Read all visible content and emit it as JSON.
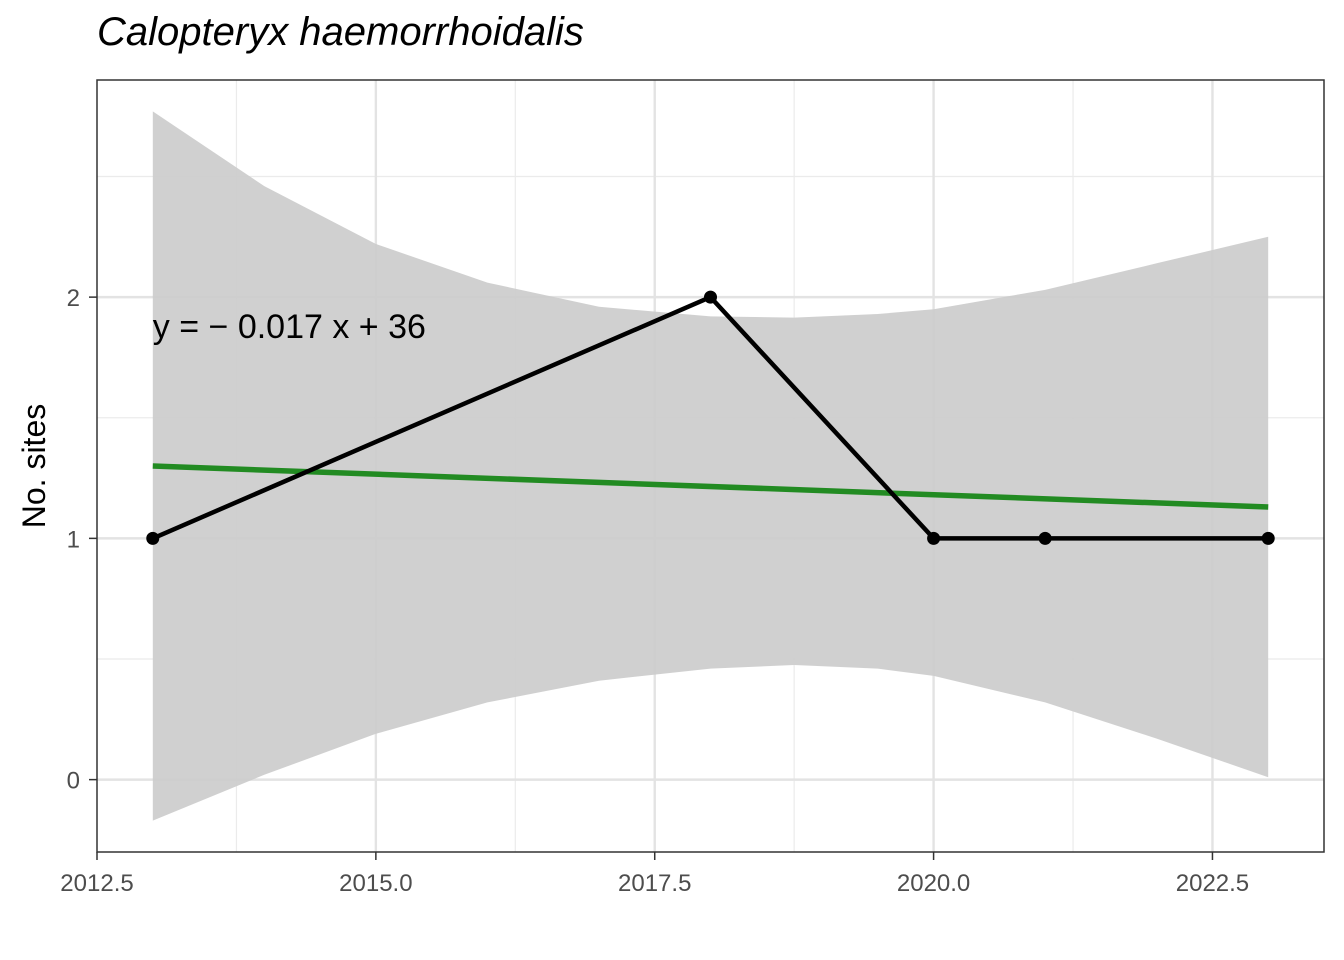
{
  "chart_data": {
    "type": "line",
    "title": "Calopteryx haemorrhoidalis",
    "xlabel": "",
    "ylabel": "No. sites",
    "xlim": [
      2012.5,
      2023.5
    ],
    "ylim": [
      -0.3,
      2.9
    ],
    "x_ticks": [
      2012.5,
      2015.0,
      2017.5,
      2020.0,
      2022.5
    ],
    "x_tick_labels": [
      "2012.5",
      "2015.0",
      "2017.5",
      "2020.0",
      "2022.5"
    ],
    "y_ticks": [
      0,
      1,
      2
    ],
    "y_tick_labels": [
      "0",
      "1",
      "2"
    ],
    "grid": true,
    "series": [
      {
        "x": [
          2013,
          2018,
          2020,
          2021,
          2023
        ],
        "y": [
          1,
          2,
          1,
          1,
          1
        ],
        "color": "#000000"
      }
    ],
    "fit": {
      "x_start": 2013,
      "x_end": 2023,
      "y_start": 1.3,
      "y_end": 1.13,
      "color": "#228B22"
    },
    "confidence_band": {
      "color": "#cccccc",
      "points": [
        {
          "x": 2013.0,
          "lower": -0.17,
          "upper": 2.77
        },
        {
          "x": 2014.0,
          "lower": 0.02,
          "upper": 2.46
        },
        {
          "x": 2015.0,
          "lower": 0.19,
          "upper": 2.22
        },
        {
          "x": 2016.0,
          "lower": 0.32,
          "upper": 2.06
        },
        {
          "x": 2017.0,
          "lower": 0.41,
          "upper": 1.96
        },
        {
          "x": 2018.0,
          "lower": 0.46,
          "upper": 1.92
        },
        {
          "x": 2018.75,
          "lower": 0.475,
          "upper": 1.915
        },
        {
          "x": 2019.5,
          "lower": 0.46,
          "upper": 1.93
        },
        {
          "x": 2020.0,
          "lower": 0.43,
          "upper": 1.95
        },
        {
          "x": 2021.0,
          "lower": 0.32,
          "upper": 2.03
        },
        {
          "x": 2022.0,
          "lower": 0.17,
          "upper": 2.14
        },
        {
          "x": 2023.0,
          "lower": 0.01,
          "upper": 2.25
        }
      ]
    },
    "annotation": {
      "text": "y = − 0.017 x + 36",
      "x": 2013,
      "y": 1.88
    }
  }
}
